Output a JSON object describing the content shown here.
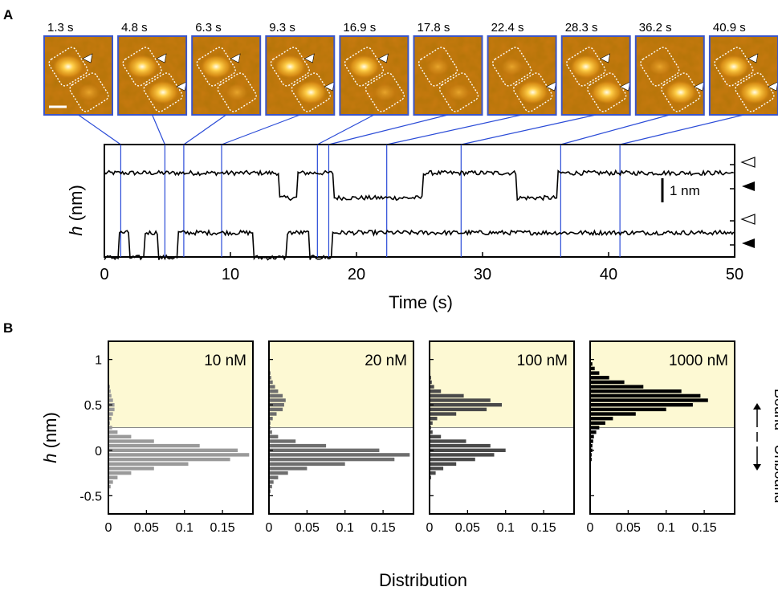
{
  "panel_a": {
    "label": "A",
    "frames": [
      {
        "time": "1.3 s",
        "t": 1.3,
        "upper": "bright",
        "lower": "dim",
        "marks": [
          "upper"
        ]
      },
      {
        "time": "4.8 s",
        "t": 4.8,
        "upper": "bright",
        "lower": "bright",
        "marks": [
          "upper",
          "lower"
        ]
      },
      {
        "time": "6.3 s",
        "t": 6.3,
        "upper": "bright",
        "lower": "dim",
        "marks": [
          "upper"
        ]
      },
      {
        "time": "9.3 s",
        "t": 9.3,
        "upper": "bright",
        "lower": "bright",
        "marks": [
          "upper",
          "lower"
        ]
      },
      {
        "time": "16.9 s",
        "t": 16.9,
        "upper": "bright",
        "lower": "dim",
        "marks": [
          "upper"
        ]
      },
      {
        "time": "17.8 s",
        "t": 17.8,
        "upper": "dim",
        "lower": "dim",
        "marks": []
      },
      {
        "time": "22.4 s",
        "t": 22.4,
        "upper": "dim",
        "lower": "bright",
        "marks": [
          "lower"
        ]
      },
      {
        "time": "28.3 s",
        "t": 28.3,
        "upper": "bright",
        "lower": "bright",
        "marks": [
          "upper",
          "lower"
        ]
      },
      {
        "time": "36.2 s",
        "t": 36.2,
        "upper": "dim",
        "lower": "bright",
        "marks": [
          "lower"
        ]
      },
      {
        "time": "40.9 s",
        "t": 40.9,
        "upper": "bright",
        "lower": "bright",
        "marks": [
          "upper",
          "lower"
        ]
      }
    ],
    "trace_chart": {
      "type": "line",
      "xlabel": "Time (s)",
      "ylabel": "h (nm)",
      "xlim": [
        0,
        50
      ],
      "xticks": [
        0,
        10,
        20,
        30,
        40,
        50
      ],
      "scale_bar": "1 nm",
      "traces": [
        {
          "baseline_nm": 1.1,
          "high_nm": 0.5,
          "segments": [
            [
              0,
              13.8,
              1
            ],
            [
              13.8,
              15.3,
              0
            ],
            [
              15.3,
              18.2,
              1
            ],
            [
              18.2,
              25.3,
              0
            ],
            [
              25.3,
              32.7,
              1
            ],
            [
              32.7,
              36.0,
              0
            ],
            [
              36.0,
              50,
              1
            ]
          ]
        },
        {
          "baseline_nm": -1.3,
          "high_nm": 0.5,
          "segments": [
            [
              0,
              1.2,
              0
            ],
            [
              1.2,
              2.0,
              1
            ],
            [
              2.0,
              3.2,
              0
            ],
            [
              3.2,
              4.3,
              1
            ],
            [
              4.3,
              5.8,
              0
            ],
            [
              5.8,
              11.8,
              1
            ],
            [
              11.8,
              14.5,
              0
            ],
            [
              14.5,
              16.2,
              1
            ],
            [
              16.2,
              18.0,
              0
            ],
            [
              18.0,
              50,
              1
            ]
          ]
        }
      ],
      "open_markers": [
        "upper-bound",
        "lower-bound"
      ],
      "filled_markers": [
        "upper-unbound",
        "lower-unbound"
      ]
    },
    "colors": {
      "frame_border": "#3b55c8",
      "link_line": "#2a4bd7",
      "image_dark": "#8a4a06",
      "image_mid": "#c97a10",
      "image_bright": "#ffd04a"
    }
  },
  "panel_b": {
    "label": "B",
    "ylabel": "h (nm)",
    "xlabel": "Distribution",
    "threshold_nm": 0.25,
    "bound_label": "Bound",
    "unbound_label": "Unbound",
    "colors": {
      "bound_region": "#fdf9d3",
      "divider": "#888888",
      "bars": [
        "#9a9a9a",
        "#6e6e6e",
        "#4a4a4a",
        "#000000"
      ]
    }
  },
  "chart_data": [
    {
      "type": "bar",
      "orientation": "horizontal",
      "title": "10 nM",
      "xlabel": "Distribution",
      "ylabel": "h (nm)",
      "xlim": [
        0,
        0.19
      ],
      "ylim": [
        -0.7,
        1.2
      ],
      "xticks": [
        "0",
        "0.05",
        "0.1",
        "0.15"
      ],
      "yticks": [
        "-0.5",
        "0",
        "0.5",
        "1"
      ],
      "bin_width": 0.05,
      "h": [
        -0.45,
        -0.4,
        -0.35,
        -0.3,
        -0.25,
        -0.2,
        -0.15,
        -0.1,
        -0.05,
        0.0,
        0.05,
        0.1,
        0.15,
        0.2,
        0.25,
        0.3,
        0.35,
        0.4,
        0.45,
        0.5,
        0.55,
        0.6,
        0.65,
        0.7,
        0.75
      ],
      "values": [
        0.0,
        0.003,
        0.006,
        0.012,
        0.03,
        0.06,
        0.105,
        0.16,
        0.185,
        0.17,
        0.12,
        0.06,
        0.03,
        0.012,
        0.005,
        0.002,
        0.004,
        0.006,
        0.008,
        0.008,
        0.006,
        0.004,
        0.003,
        0.002,
        0.001
      ]
    },
    {
      "type": "bar",
      "orientation": "horizontal",
      "title": "20 nM",
      "xlabel": "Distribution",
      "xlim": [
        0,
        0.19
      ],
      "ylim": [
        -0.7,
        1.2
      ],
      "xticks": [
        "0",
        "0.05",
        "0.1",
        "0.15"
      ],
      "bin_width": 0.05,
      "h": [
        -0.45,
        -0.4,
        -0.35,
        -0.3,
        -0.25,
        -0.2,
        -0.15,
        -0.1,
        -0.05,
        0.0,
        0.05,
        0.1,
        0.15,
        0.2,
        0.25,
        0.3,
        0.35,
        0.4,
        0.45,
        0.5,
        0.55,
        0.6,
        0.65,
        0.7,
        0.75,
        0.8,
        0.85
      ],
      "values": [
        0.002,
        0.004,
        0.006,
        0.012,
        0.025,
        0.05,
        0.1,
        0.165,
        0.185,
        0.145,
        0.075,
        0.035,
        0.012,
        0.004,
        0.002,
        0.002,
        0.005,
        0.01,
        0.018,
        0.02,
        0.022,
        0.018,
        0.012,
        0.008,
        0.005,
        0.003,
        0.002
      ]
    },
    {
      "type": "bar",
      "orientation": "horizontal",
      "title": "100 nM",
      "xlabel": "Distribution",
      "xlim": [
        0,
        0.19
      ],
      "ylim": [
        -0.7,
        1.2
      ],
      "xticks": [
        "0",
        "0.05",
        "0.1",
        "0.15"
      ],
      "bin_width": 0.05,
      "h": [
        -0.3,
        -0.25,
        -0.2,
        -0.15,
        -0.1,
        -0.05,
        0.0,
        0.05,
        0.1,
        0.15,
        0.2,
        0.25,
        0.3,
        0.35,
        0.4,
        0.45,
        0.5,
        0.55,
        0.6,
        0.65,
        0.7,
        0.75,
        0.8
      ],
      "values": [
        0.002,
        0.008,
        0.018,
        0.035,
        0.06,
        0.085,
        0.1,
        0.08,
        0.048,
        0.015,
        0.004,
        0.002,
        0.004,
        0.01,
        0.035,
        0.075,
        0.095,
        0.08,
        0.045,
        0.015,
        0.006,
        0.003,
        0.002
      ]
    },
    {
      "type": "bar",
      "orientation": "horizontal",
      "title": "1000 nM",
      "xlabel": "Distribution",
      "xlim": [
        0,
        0.19
      ],
      "ylim": [
        -0.7,
        1.2
      ],
      "xticks": [
        "0",
        "0.05",
        "0.1",
        "0.15"
      ],
      "bin_width": 0.05,
      "h": [
        -0.2,
        -0.15,
        -0.1,
        -0.05,
        0.0,
        0.05,
        0.1,
        0.15,
        0.2,
        0.25,
        0.3,
        0.35,
        0.4,
        0.45,
        0.5,
        0.55,
        0.6,
        0.65,
        0.7,
        0.75,
        0.8,
        0.85,
        0.9,
        0.95
      ],
      "values": [
        0.001,
        0.001,
        0.002,
        0.002,
        0.003,
        0.003,
        0.004,
        0.005,
        0.008,
        0.012,
        0.02,
        0.03,
        0.06,
        0.1,
        0.135,
        0.155,
        0.145,
        0.12,
        0.07,
        0.045,
        0.025,
        0.012,
        0.006,
        0.003
      ]
    }
  ]
}
